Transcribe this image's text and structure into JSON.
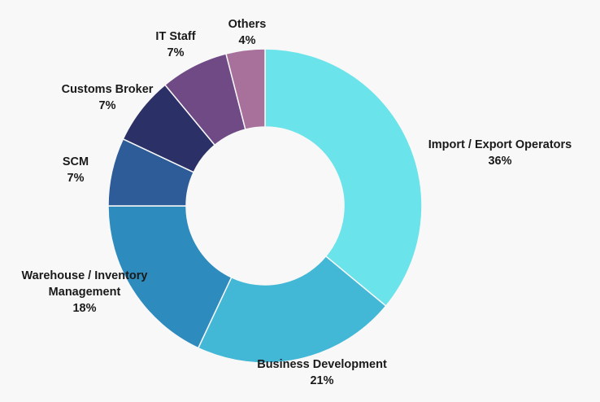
{
  "chart_data": {
    "type": "pie",
    "title": "",
    "donut": true,
    "categories": [
      "Import / Export Operators",
      "Business Development",
      "Warehouse / Inventory Management",
      "SCM",
      "Customs Broker",
      "IT Staff",
      "Others"
    ],
    "values": [
      36,
      21,
      18,
      7,
      7,
      7,
      4
    ],
    "value_labels": [
      "36%",
      "21%",
      "18%",
      "7%",
      "7%",
      "7%",
      "4%"
    ],
    "label_lines": [
      [
        "Import / Export Operators"
      ],
      [
        "Business Development"
      ],
      [
        "Warehouse / Inventory",
        "Management"
      ],
      [
        "SCM"
      ],
      [
        "Customs Broker"
      ],
      [
        "IT Staff"
      ],
      [
        "Others"
      ]
    ],
    "colors": [
      "#6ae3ea",
      "#42b8d6",
      "#2e8bbd",
      "#2d5c99",
      "#2b3066",
      "#6f4a85",
      "#a7719c"
    ],
    "legend": "none"
  }
}
